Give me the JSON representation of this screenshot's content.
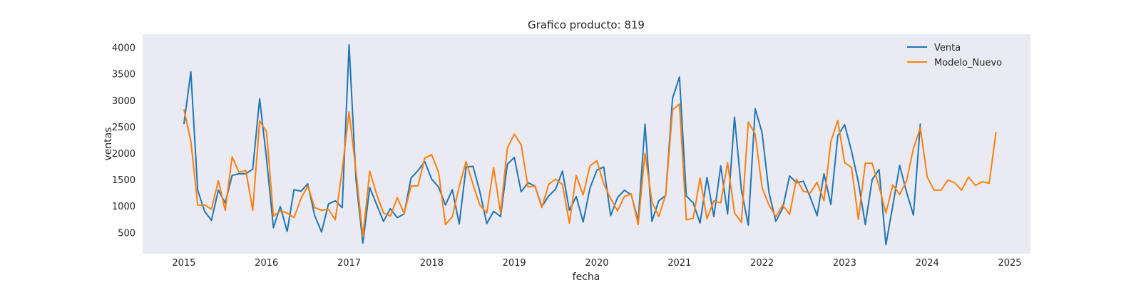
{
  "chart_data": {
    "type": "line",
    "title": "Grafico producto: 819",
    "xlabel": "fecha",
    "ylabel": "ventas",
    "x_ticks": [
      "2015",
      "2016",
      "2017",
      "2018",
      "2019",
      "2020",
      "2021",
      "2022",
      "2023",
      "2024",
      "2025"
    ],
    "y_ticks": [
      500,
      1000,
      1500,
      2000,
      2500,
      3000,
      3500,
      4000
    ],
    "xlim": [
      "2014-07",
      "2025-04"
    ],
    "ylim": [
      100,
      4250
    ],
    "grid": false,
    "legend_position": "top-right",
    "background_color": "#eaeaf2",
    "series": [
      {
        "name": "Venta",
        "color": "#1f77b4",
        "start": "2015-01",
        "values": [
          2550,
          3540,
          1300,
          900,
          730,
          1300,
          1060,
          1580,
          1610,
          1610,
          1700,
          3030,
          1900,
          590,
          990,
          520,
          1310,
          1280,
          1420,
          820,
          510,
          1040,
          1100,
          970,
          4050,
          1500,
          300,
          1350,
          1030,
          710,
          950,
          780,
          850,
          1530,
          1670,
          1840,
          1510,
          1360,
          1020,
          1310,
          660,
          1740,
          1750,
          1270,
          670,
          900,
          800,
          1790,
          1920,
          1270,
          1440,
          1380,
          990,
          1190,
          1320,
          1660,
          920,
          1180,
          700,
          1340,
          1680,
          1740,
          820,
          1160,
          1300,
          1210,
          720,
          2550,
          710,
          1100,
          1200,
          3040,
          3440,
          1190,
          1060,
          680,
          1540,
          800,
          1760,
          850,
          2680,
          1300,
          640,
          2840,
          2390,
          1260,
          710,
          960,
          1570,
          1440,
          1470,
          1170,
          820,
          1610,
          1030,
          2330,
          2540,
          2040,
          1450,
          650,
          1500,
          1690,
          270,
          1010,
          1770,
          1260,
          830,
          2560
        ]
      },
      {
        "name": "Modelo_Nuevo",
        "color": "#ff7f0e",
        "start": "2015-01",
        "values": [
          2830,
          2230,
          1020,
          1020,
          940,
          1480,
          920,
          1930,
          1640,
          1670,
          920,
          2610,
          2410,
          810,
          910,
          870,
          780,
          1140,
          1380,
          970,
          920,
          940,
          740,
          1690,
          2780,
          1670,
          420,
          1660,
          1220,
          870,
          810,
          1160,
          860,
          1380,
          1380,
          1910,
          1970,
          1640,
          650,
          800,
          1370,
          1840,
          1410,
          1020,
          870,
          1730,
          870,
          2100,
          2360,
          2160,
          1360,
          1380,
          970,
          1410,
          1510,
          1410,
          680,
          1580,
          1210,
          1760,
          1860,
          1420,
          1140,
          910,
          1180,
          1230,
          650,
          2000,
          1080,
          800,
          1210,
          2820,
          2930,
          740,
          770,
          1530,
          760,
          1100,
          1060,
          1820,
          870,
          690,
          2590,
          2360,
          1350,
          1020,
          800,
          1020,
          840,
          1510,
          1280,
          1250,
          1450,
          1100,
          2220,
          2620,
          1820,
          1730,
          750,
          1810,
          1810,
          1370,
          870,
          1400,
          1220,
          1480,
          2090,
          2480,
          1550,
          1300,
          1300,
          1490,
          1440,
          1300,
          1550,
          1390,
          1460,
          1430,
          2400
        ]
      }
    ]
  }
}
